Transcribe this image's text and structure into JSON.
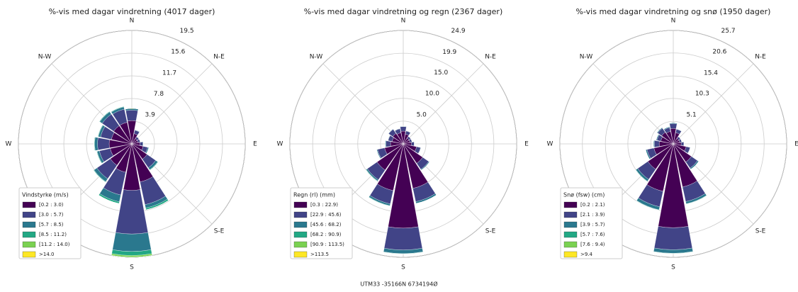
{
  "footer": "UTM33 -35166N 6734194Ø",
  "chart_data": [
    {
      "type": "windrose",
      "title": "%-vis med dagar vindretning (4017 dager)",
      "direction_labels": [
        "N",
        "N-E",
        "E",
        "S-E",
        "S",
        null,
        "W",
        "N-W"
      ],
      "rlim": [
        0,
        19.5
      ],
      "rticks": [
        3.9,
        7.8,
        11.7,
        15.6,
        19.5
      ],
      "grid": true,
      "legend_title": "Vindstyrke (m/s)",
      "legend_position": "lower left",
      "series": [
        {
          "name": "[0.2 : 3.0)",
          "color": "#440154",
          "values": [
            4.0,
            1.8,
            1.1,
            1.1,
            1.4,
            2.0,
            3.2,
            6.7,
            8.0,
            5.0,
            4.5,
            3.8,
            3.9,
            3.6,
            3.8,
            3.8
          ]
        },
        {
          "name": "[3.0 : 5.7)",
          "color": "#414487",
          "values": [
            1.8,
            0.6,
            0.4,
            0.4,
            0.5,
            0.8,
            1.8,
            4.0,
            7.5,
            4.0,
            2.8,
            1.9,
            2.0,
            1.9,
            2.4,
            2.3
          ]
        },
        {
          "name": "[5.7 : 8.5)",
          "color": "#2a788e",
          "values": [
            0.3,
            0.1,
            0,
            0,
            0.1,
            0.2,
            0.4,
            0.6,
            3.0,
            1.2,
            0.6,
            0.4,
            0.5,
            0.4,
            0.5,
            0.4
          ]
        },
        {
          "name": "[8.5 : 11.2)",
          "color": "#22a884",
          "values": [
            0,
            0,
            0,
            0,
            0,
            0,
            0.1,
            0.3,
            0.7,
            0.3,
            0.1,
            0.1,
            0.1,
            0.1,
            0.1,
            0.1
          ]
        },
        {
          "name": "[11.2 : 14.0)",
          "color": "#7ad151",
          "values": [
            0,
            0,
            0,
            0,
            0,
            0,
            0,
            0,
            0.3,
            0,
            0,
            0,
            0,
            0,
            0,
            0
          ]
        },
        {
          "name": ">14.0",
          "color": "#fde725",
          "values": [
            0,
            0,
            0,
            0,
            0,
            0,
            0,
            0,
            0,
            0,
            0,
            0,
            0,
            0,
            0,
            0
          ]
        }
      ]
    },
    {
      "type": "windrose",
      "title": "%-vis med dagar vindretning og regn (2367 dager)",
      "direction_labels": [
        "N",
        "N-E",
        "E",
        "S-E",
        "S",
        null,
        "W",
        "N-W"
      ],
      "rlim": [
        0,
        24.9
      ],
      "rticks": [
        {
          "value": 5,
          "label": "5.0"
        },
        {
          "value": 10,
          "label": "10.0"
        },
        {
          "value": 15,
          "label": "15.0"
        },
        19.9,
        24.9
      ],
      "grid": true,
      "legend_title": "Regn (rl) (mm)",
      "legend_position": "lower left",
      "series": [
        {
          "name": "[0.3 : 22.9)",
          "color": "#440154",
          "values": [
            2.8,
            2.2,
            1.5,
            1.5,
            1.8,
            3.0,
            5.2,
            10.0,
            18.5,
            10.5,
            7.0,
            4.2,
            2.8,
            2.5,
            2.8,
            2.5
          ]
        },
        {
          "name": "[22.9 : 45.6)",
          "color": "#414487",
          "values": [
            1.0,
            0.7,
            0.5,
            0.5,
            0.6,
            0.9,
            1.6,
            3.0,
            4.8,
            3.0,
            2.6,
            1.6,
            1.0,
            0.9,
            1.1,
            0.9
          ]
        },
        {
          "name": "[45.6 : 68.2)",
          "color": "#2a788e",
          "values": [
            0.1,
            0.1,
            0,
            0,
            0.1,
            0.1,
            0.2,
            0.4,
            0.8,
            0.4,
            0.3,
            0.2,
            0.2,
            0.1,
            0.1,
            0.1
          ]
        },
        {
          "name": "[68.2 : 90.9)",
          "color": "#22a884",
          "values": [
            0,
            0,
            0,
            0,
            0,
            0,
            0,
            0,
            0.1,
            0.1,
            0.1,
            0,
            0,
            0,
            0,
            0
          ]
        },
        {
          "name": "[90.9 : 113.5)",
          "color": "#7ad151",
          "values": [
            0,
            0,
            0,
            0,
            0,
            0,
            0,
            0,
            0,
            0,
            0,
            0,
            0,
            0,
            0,
            0
          ]
        },
        {
          "name": ">113.5",
          "color": "#fde725",
          "values": [
            0,
            0,
            0,
            0,
            0,
            0,
            0,
            0,
            0,
            0,
            0,
            0,
            0,
            0,
            0,
            0
          ]
        }
      ]
    },
    {
      "type": "windrose",
      "title": "%-vis med dagar vindretning og snø (1950 dager)",
      "direction_labels": [
        "N",
        "N-E",
        "E",
        "S-E",
        "S",
        null,
        "W",
        "N-W"
      ],
      "rlim": [
        0,
        25.7
      ],
      "rticks": [
        5.1,
        10.3,
        15.4,
        20.6,
        25.7
      ],
      "grid": true,
      "legend_title": "Snø (fsw) (cm)",
      "legend_position": "lower left",
      "series": [
        {
          "name": "[0.2 : 2.1)",
          "color": "#440154",
          "values": [
            3.5,
            2.6,
            1.5,
            1.5,
            1.8,
            3.0,
            5.0,
            10.0,
            19.0,
            11.0,
            7.0,
            4.5,
            3.2,
            2.9,
            3.2,
            2.9
          ]
        },
        {
          "name": "[2.1 : 3.9)",
          "color": "#414487",
          "values": [
            1.1,
            0.8,
            0.5,
            0.5,
            0.6,
            0.9,
            1.7,
            3.4,
            5.0,
            3.6,
            2.8,
            1.6,
            1.1,
            0.9,
            1.1,
            0.9
          ]
        },
        {
          "name": "[3.9 : 5.7)",
          "color": "#2a788e",
          "values": [
            0.2,
            0.1,
            0,
            0,
            0.1,
            0.1,
            0.3,
            0.5,
            0.8,
            0.7,
            0.5,
            0.3,
            0.2,
            0.2,
            0.2,
            0.2
          ]
        },
        {
          "name": "[5.7 : 7.6)",
          "color": "#22a884",
          "values": [
            0,
            0,
            0,
            0,
            0,
            0,
            0,
            0.1,
            0.1,
            0.1,
            0.1,
            0,
            0,
            0,
            0,
            0
          ]
        },
        {
          "name": "[7.6 : 9.4)",
          "color": "#7ad151",
          "values": [
            0,
            0,
            0,
            0,
            0,
            0,
            0,
            0,
            0,
            0,
            0,
            0,
            0,
            0,
            0,
            0
          ]
        },
        {
          "name": ">9.4",
          "color": "#fde725",
          "values": [
            0,
            0,
            0,
            0,
            0,
            0,
            0,
            0,
            0,
            0,
            0,
            0,
            0,
            0,
            0,
            0
          ]
        }
      ]
    }
  ]
}
